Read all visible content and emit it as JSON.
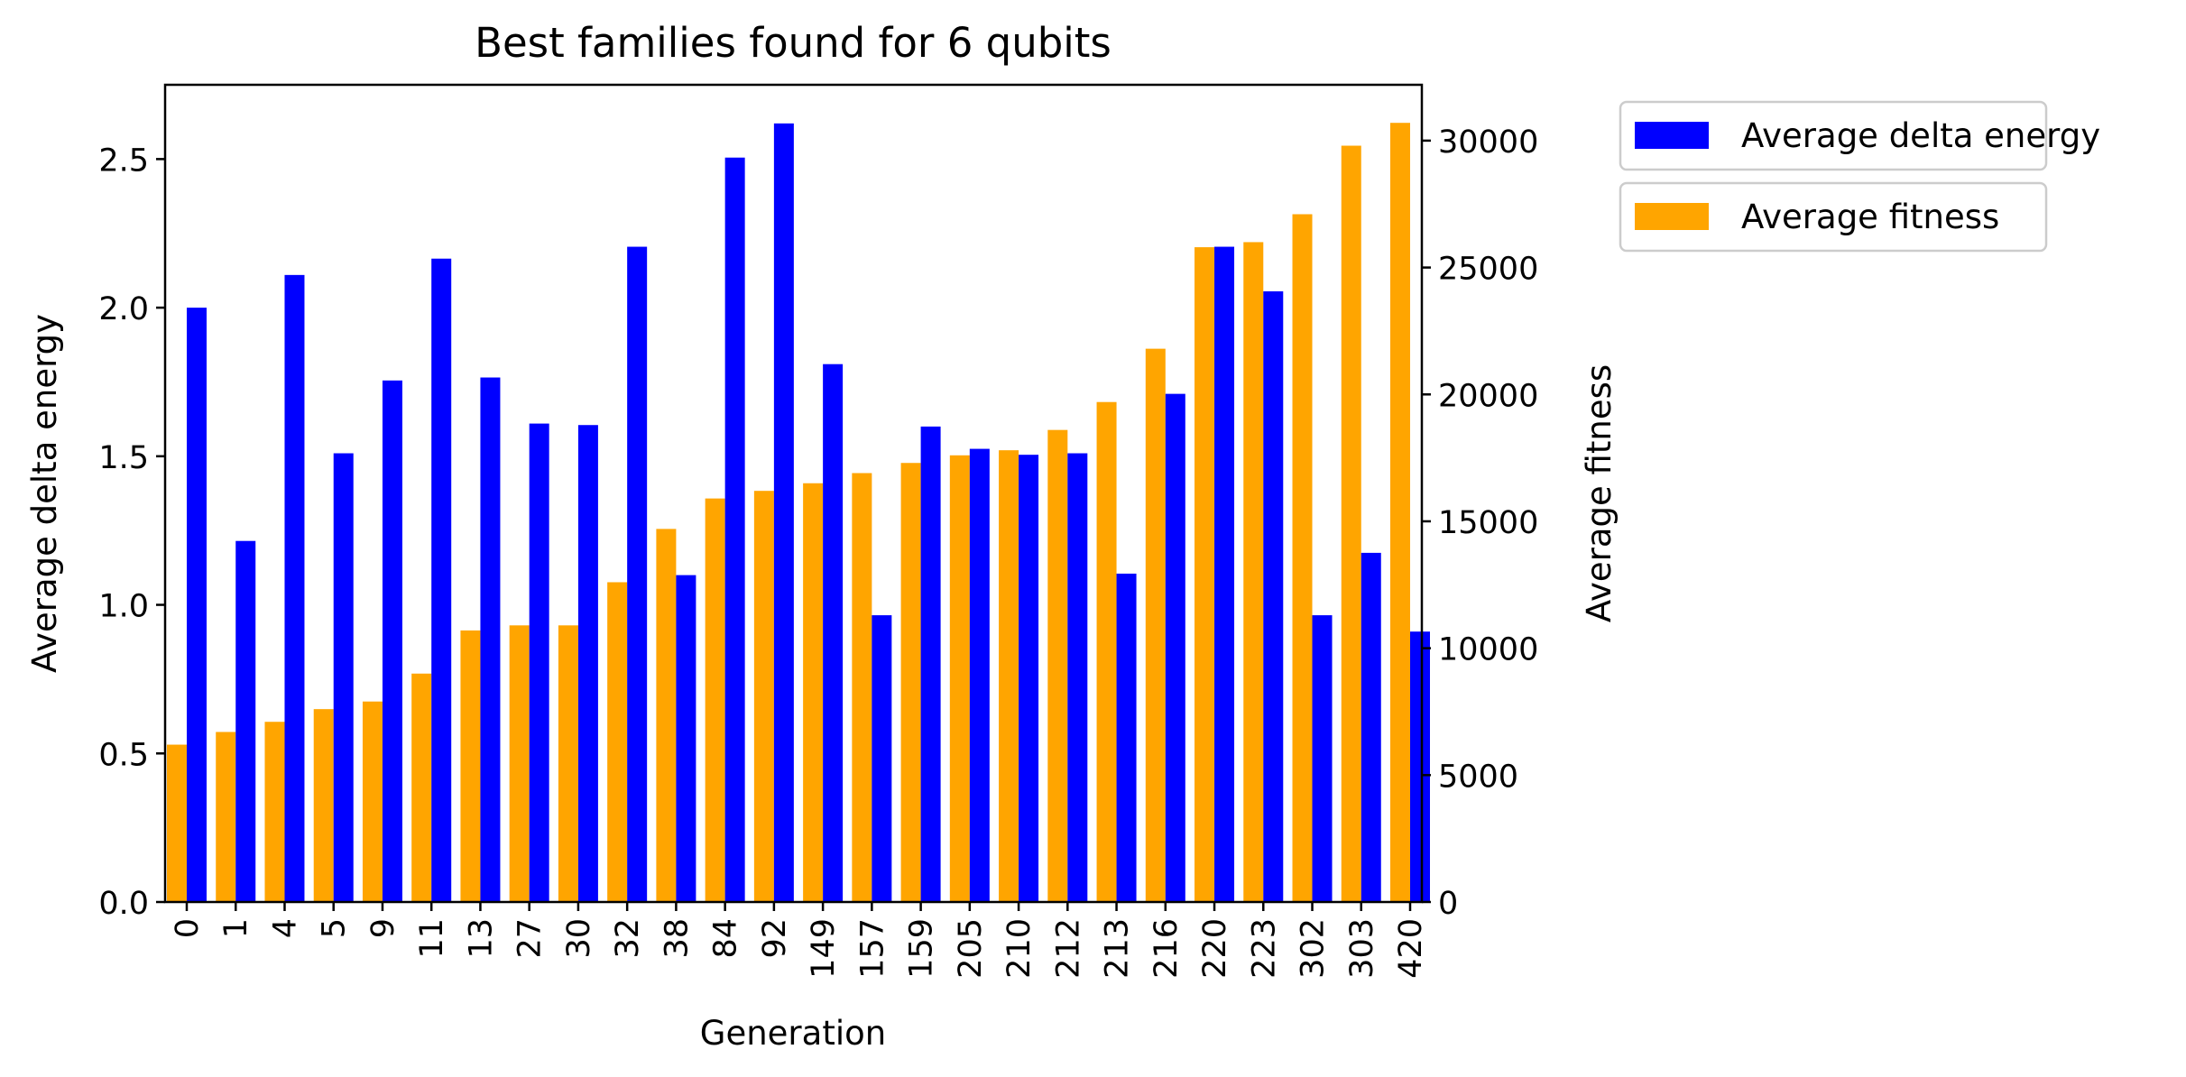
{
  "chart_data": {
    "type": "bar",
    "title": "Best families found for 6 qubits",
    "xlabel": "Generation",
    "ylabel": "Average delta energy",
    "y2label": "Average fitness",
    "categories": [
      "0",
      "1",
      "4",
      "5",
      "9",
      "11",
      "13",
      "27",
      "30",
      "32",
      "38",
      "84",
      "92",
      "149",
      "157",
      "159",
      "205",
      "210",
      "212",
      "213",
      "216",
      "220",
      "223",
      "302",
      "303",
      "420"
    ],
    "ylim": [
      0,
      2.75
    ],
    "y2lim": [
      0,
      32200
    ],
    "yticks": [
      0.0,
      0.5,
      1.0,
      1.5,
      2.0,
      2.5
    ],
    "ytick_labels": [
      "0.0",
      "0.5",
      "1.0",
      "1.5",
      "2.0",
      "2.5"
    ],
    "y2ticks": [
      0,
      5000,
      10000,
      15000,
      20000,
      25000,
      30000
    ],
    "y2tick_labels": [
      "0",
      "5000",
      "10000",
      "15000",
      "20000",
      "25000",
      "30000"
    ],
    "series": [
      {
        "name": "Average delta energy",
        "axis": "left",
        "color": "#0000ff",
        "values": [
          2.0,
          1.215,
          2.11,
          1.51,
          1.755,
          2.165,
          1.765,
          1.61,
          1.605,
          2.205,
          1.1,
          2.505,
          2.62,
          1.81,
          0.965,
          1.6,
          1.525,
          1.505,
          1.51,
          1.105,
          1.71,
          2.205,
          2.055,
          0.965,
          1.175,
          0.91
        ]
      },
      {
        "name": "Average fitness",
        "axis": "right",
        "color": "#ffa500",
        "values": [
          6200,
          6700,
          7100,
          7600,
          7900,
          9000,
          10700,
          10900,
          10900,
          12600,
          14700,
          15900,
          16200,
          16500,
          16900,
          17300,
          17600,
          17800,
          18600,
          19700,
          21800,
          25800,
          26000,
          27100,
          29800,
          30700
        ]
      }
    ],
    "legend_position": "outside-right",
    "grid": false
  }
}
